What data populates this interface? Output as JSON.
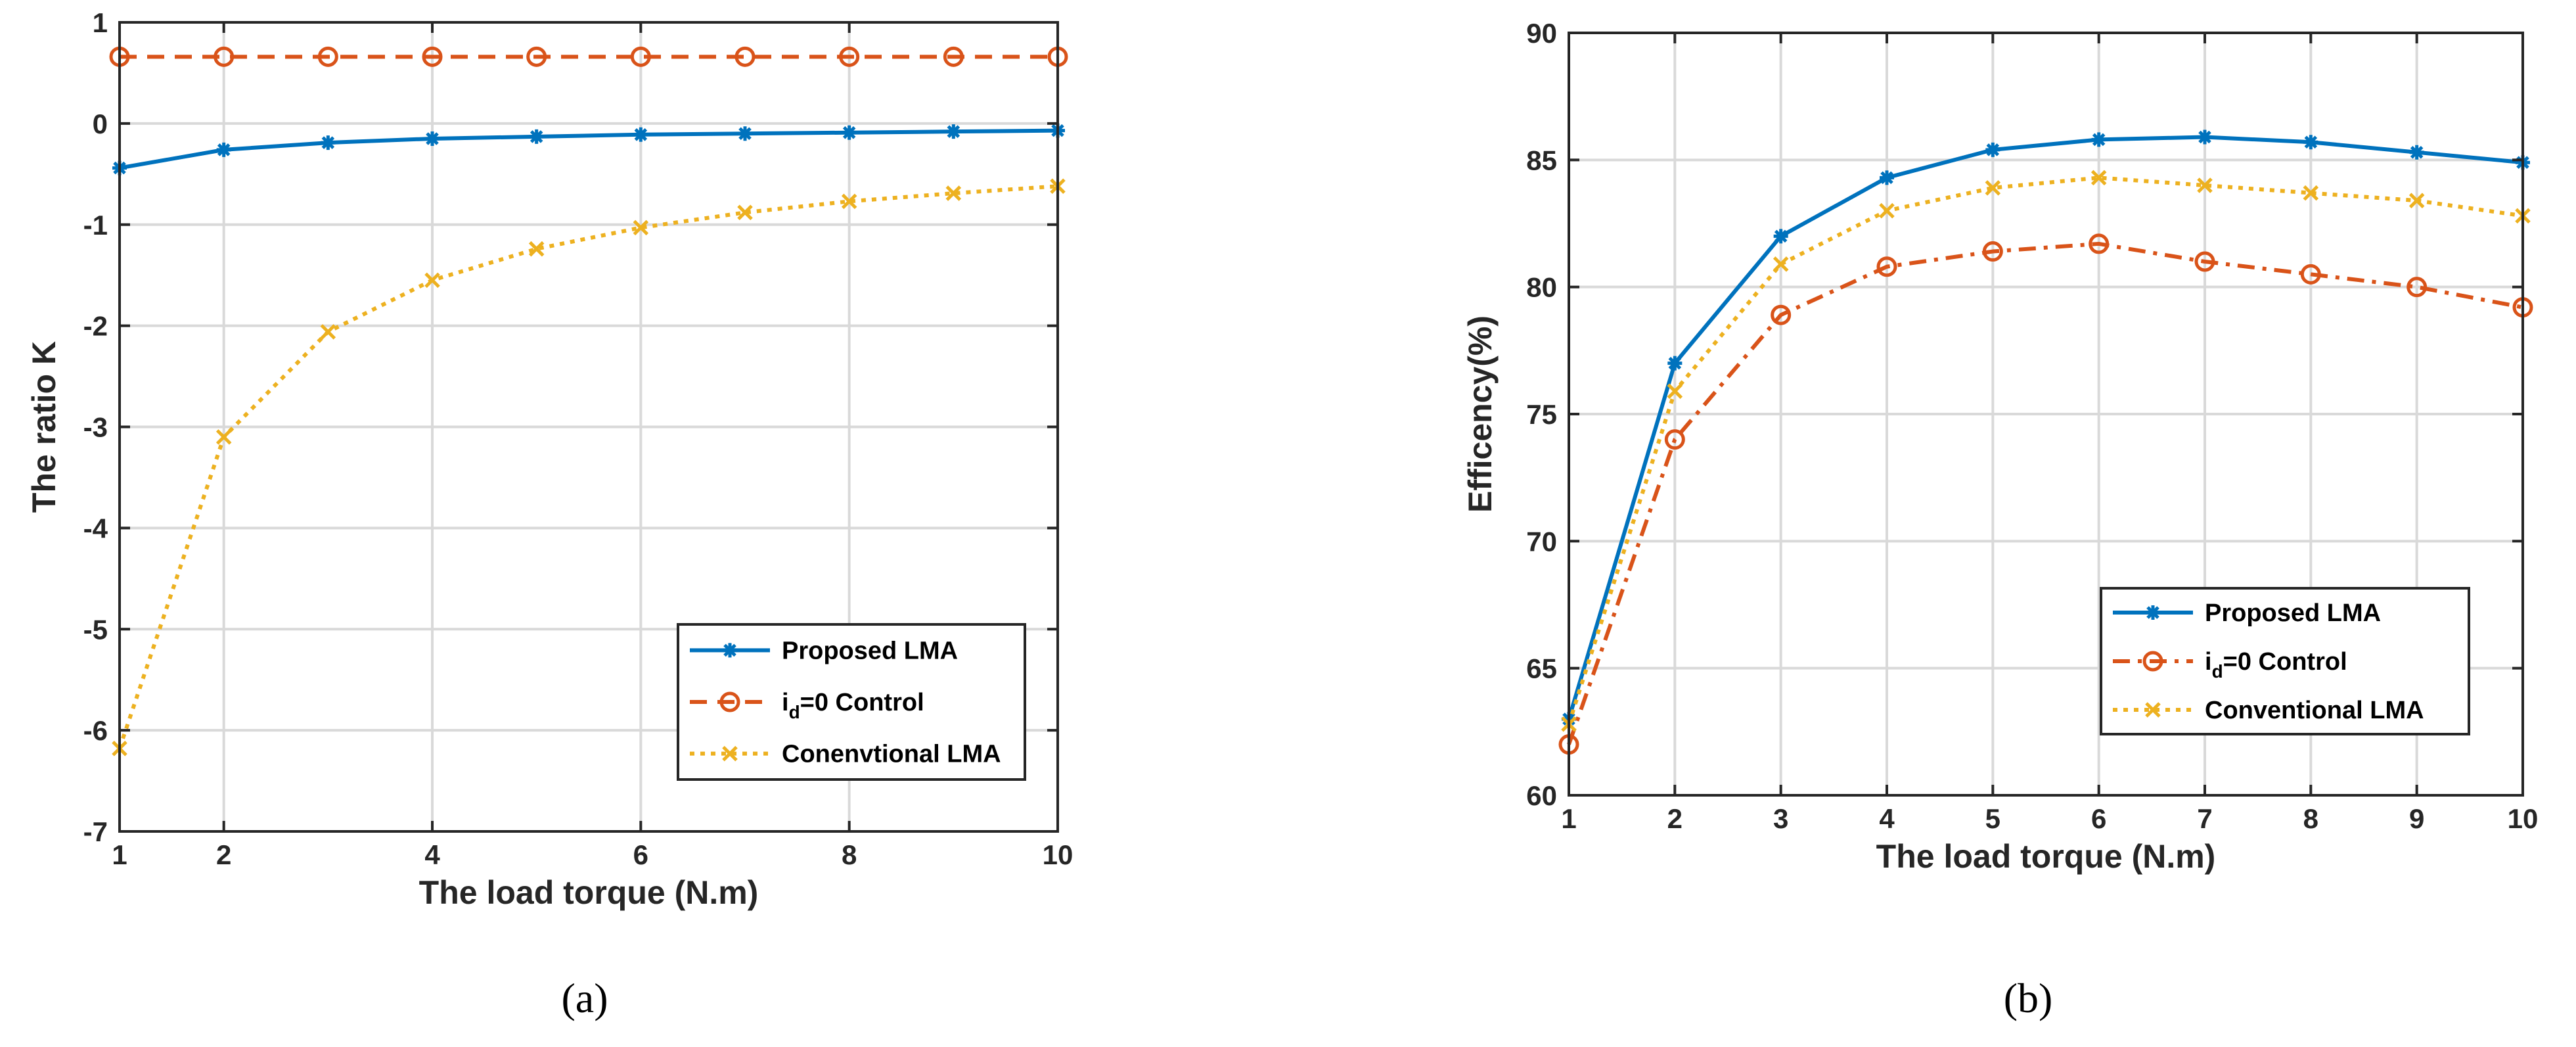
{
  "colors": {
    "s1": "#0072BD",
    "s2": "#D95319",
    "s3": "#EDB120"
  },
  "chart_data": [
    {
      "type": "line",
      "caption": "(a)",
      "xlabel": "The load torque (N.m)",
      "ylabel": "The ratio K",
      "xlim": [
        1,
        10
      ],
      "ylim": [
        -7,
        1
      ],
      "xticks": [
        1,
        2,
        4,
        6,
        8,
        10
      ],
      "yticks": [
        -7,
        -6,
        -5,
        -4,
        -3,
        -2,
        -1,
        0,
        1
      ],
      "grid": true,
      "legend_position": "lower-right",
      "x": [
        1,
        2,
        3,
        4,
        5,
        6,
        7,
        8,
        9,
        10
      ],
      "series": [
        {
          "name": "Proposed LMA",
          "name_parts": [
            "Proposed LMA",
            "",
            ""
          ],
          "values": [
            -0.44,
            -0.26,
            -0.19,
            -0.15,
            -0.13,
            -0.11,
            -0.1,
            -0.09,
            -0.08,
            -0.07
          ],
          "line": "solid",
          "marker": "asterisk"
        },
        {
          "name": "id=0 Control",
          "name_parts": [
            "i",
            "d",
            "=0 Control"
          ],
          "values": [
            0.66,
            0.66,
            0.66,
            0.66,
            0.66,
            0.66,
            0.66,
            0.66,
            0.66,
            0.66
          ],
          "line": "dashed",
          "marker": "circle"
        },
        {
          "name": "Conenvtional LMA",
          "name_parts": [
            "Conenvtional LMA",
            "",
            ""
          ],
          "values": [
            -6.18,
            -3.1,
            -2.06,
            -1.55,
            -1.24,
            -1.03,
            -0.88,
            -0.77,
            -0.69,
            -0.62
          ],
          "line": "dotted",
          "marker": "x"
        }
      ]
    },
    {
      "type": "line",
      "caption": "(b)",
      "xlabel": "The load torque (N.m)",
      "ylabel": "Efficency(%)",
      "xlim": [
        1,
        10
      ],
      "ylim": [
        60,
        90
      ],
      "xticks": [
        1,
        2,
        3,
        4,
        5,
        6,
        7,
        8,
        9,
        10
      ],
      "yticks": [
        60,
        65,
        70,
        75,
        80,
        85,
        90
      ],
      "grid": true,
      "legend_position": "middle-right",
      "x": [
        1,
        2,
        3,
        4,
        5,
        6,
        7,
        8,
        9,
        10
      ],
      "series": [
        {
          "name": "Proposed LMA",
          "name_parts": [
            "Proposed LMA",
            "",
            ""
          ],
          "values": [
            63.0,
            77.0,
            82.0,
            84.3,
            85.4,
            85.8,
            85.9,
            85.7,
            85.3,
            84.9
          ],
          "line": "solid",
          "marker": "asterisk"
        },
        {
          "name": "id=0 Control",
          "name_parts": [
            "i",
            "d",
            "=0 Control"
          ],
          "values": [
            62.0,
            74.0,
            78.9,
            80.8,
            81.4,
            81.7,
            81.0,
            80.5,
            80.0,
            79.2
          ],
          "line": "dashdot",
          "marker": "circle"
        },
        {
          "name": "Conventional LMA",
          "name_parts": [
            "Conventional LMA",
            "",
            ""
          ],
          "values": [
            62.8,
            75.9,
            80.9,
            83.0,
            83.9,
            84.3,
            84.0,
            83.7,
            83.4,
            82.8
          ],
          "line": "dotted",
          "marker": "x"
        }
      ]
    }
  ]
}
